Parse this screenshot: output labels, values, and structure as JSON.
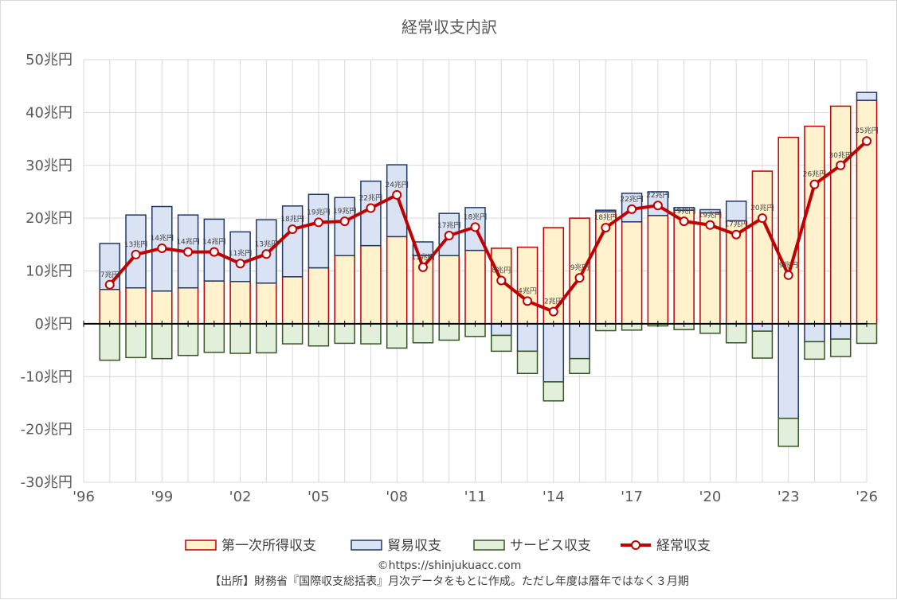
{
  "chart_data": {
    "type": "bar",
    "title": "経常収支内訳",
    "y_unit_suffix": "兆円",
    "ylim": [
      -30,
      50
    ],
    "yticks": [
      50,
      40,
      30,
      20,
      10,
      0,
      -10,
      -20,
      -30
    ],
    "ytick_labels": [
      "50兆円",
      "40兆円",
      "30兆円",
      "20兆円",
      "10兆円",
      "0兆円",
      "-10兆円",
      "-20兆円",
      "-30兆円"
    ],
    "xlim": [
      1996,
      2026
    ],
    "x_ticks": [
      1996,
      1999,
      2002,
      2005,
      2008,
      2011,
      2014,
      2017,
      2020,
      2023,
      2026
    ],
    "x_tick_labels": [
      "'96",
      "'99",
      "'02",
      "'05",
      "'08",
      "'11",
      "'14",
      "'17",
      "'20",
      "'23",
      "'26"
    ],
    "grid": true,
    "legend_position": "bottom",
    "stacked": true,
    "years": [
      1997,
      1998,
      1999,
      2000,
      2001,
      2002,
      2003,
      2004,
      2005,
      2006,
      2007,
      2008,
      2009,
      2010,
      2011,
      2012,
      2013,
      2014,
      2015,
      2016,
      2017,
      2018,
      2019,
      2020,
      2021,
      2022,
      2023,
      2024,
      2025,
      2026
    ],
    "series": [
      {
        "name": "第一次所得収支",
        "kind": "bar",
        "fill": "#fff2cc",
        "stroke": "#c00000",
        "values": [
          6.5,
          6.8,
          6.2,
          6.8,
          8.1,
          8.0,
          7.7,
          8.9,
          10.6,
          12.9,
          14.8,
          16.5,
          12.9,
          12.9,
          13.9,
          14.3,
          14.5,
          18.2,
          20.0,
          21.2,
          19.3,
          20.5,
          21.5,
          21.0,
          19.5,
          28.9,
          35.3,
          37.4,
          41.2,
          42.3
        ]
      },
      {
        "name": "貿易収支",
        "kind": "bar",
        "fill": "#dae3f3",
        "stroke": "#1f3864",
        "values": [
          8.7,
          13.8,
          16.0,
          13.8,
          11.7,
          9.4,
          12.0,
          13.4,
          13.9,
          11.0,
          12.2,
          13.6,
          2.6,
          8.0,
          8.1,
          -2.2,
          -5.2,
          -11.0,
          -6.6,
          0.3,
          5.4,
          4.5,
          0.5,
          0.6,
          3.7,
          -1.4,
          -17.9,
          -3.4,
          -2.9,
          1.5
        ]
      },
      {
        "name": "サービス収支",
        "kind": "bar",
        "fill": "#e2efda",
        "stroke": "#375623",
        "values": [
          -6.9,
          -6.4,
          -6.6,
          -6.0,
          -5.4,
          -5.6,
          -5.5,
          -3.8,
          -4.2,
          -3.7,
          -3.8,
          -4.6,
          -3.6,
          -3.1,
          -2.4,
          -3.0,
          -4.2,
          -3.6,
          -2.8,
          -1.3,
          -1.2,
          -0.4,
          -1.1,
          -1.8,
          -3.6,
          -5.1,
          -5.3,
          -3.3,
          -3.3,
          -3.7
        ]
      },
      {
        "name": "経常収支",
        "kind": "line",
        "color": "#c00000",
        "values": [
          7.4,
          13.1,
          14.3,
          13.6,
          13.6,
          11.4,
          13.2,
          17.9,
          19.2,
          19.4,
          21.9,
          24.4,
          10.7,
          16.7,
          18.3,
          8.2,
          4.3,
          2.3,
          8.7,
          18.2,
          21.7,
          22.4,
          19.4,
          18.7,
          16.9,
          20.0,
          9.2,
          26.4,
          30.0,
          34.6
        ]
      }
    ],
    "point_labels": [
      "7兆円",
      "13兆円",
      "14兆円",
      "14兆円",
      "14兆円",
      "11兆円",
      "13兆円",
      "18兆円",
      "19兆円",
      "19兆円",
      "22兆円",
      "24兆円",
      "11兆円",
      "17兆円",
      "18兆円",
      "8兆円",
      "4兆円",
      "2兆円",
      "9兆円",
      "18兆円",
      "22兆円",
      "22兆円",
      "19兆円",
      "19兆円",
      "17兆円",
      "20兆円",
      "9兆円",
      "26兆円",
      "30兆円",
      "35兆円"
    ]
  },
  "footer": {
    "copyright": "©https://shinjukuacc.com",
    "source": "【出所】財務省『国際収支総括表』月次データをもとに作成。ただし年度は暦年ではなく３月期"
  }
}
